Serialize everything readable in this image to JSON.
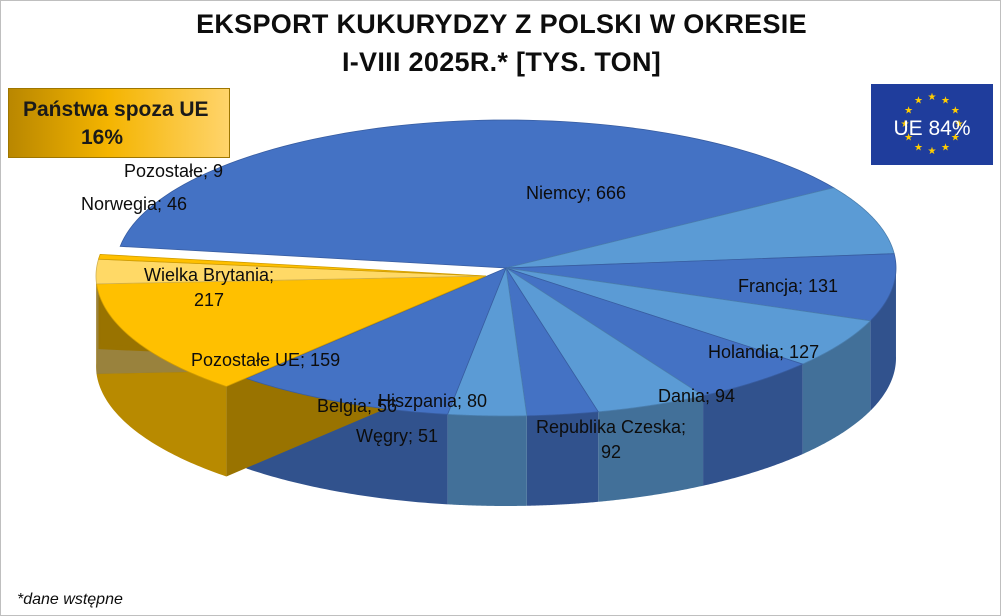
{
  "title_line1": "EKSPORT KUKURYDZY Z POLSKI W OKRESIE",
  "title_line2": "I-VIII 2025R.* [TYS. TON]",
  "non_eu_box": {
    "label": "Państwa spoza UE",
    "share": "16%"
  },
  "eu_box": {
    "label": "UE 84%",
    "flag_color": "#1f3d9c",
    "star_color": "#ffcc00"
  },
  "footnote": "*dane wstępne",
  "labels": {
    "niemcy": "Niemcy; 666",
    "francja": "Francja; 131",
    "holandia": "Holandia; 127",
    "dania": "Dania; 94",
    "czechy_1": "Republika Czeska;",
    "czechy_2": "92",
    "hiszpania": "Hiszpania; 80",
    "wegry": "Węgry; 51",
    "belgia": "Belgia; 56",
    "pozostale_ue": "Pozostałe UE; 159",
    "wb_1": "Wielka Brytania;",
    "wb_2": "217",
    "norwegia": "Norwegia; 46",
    "pozostale": "Pozostałe; 9"
  },
  "chart_data": {
    "type": "pie",
    "title": "EKSPORT KUKURYDZY Z POLSKI W OKRESIE I-VIII 2025R.* [TYS. TON]",
    "unit": "tys. ton",
    "slices": [
      {
        "name": "Niemcy",
        "value": 666,
        "group": "UE",
        "color": "#4472c4"
      },
      {
        "name": "Francja",
        "value": 131,
        "group": "UE",
        "color": "#5b9bd5"
      },
      {
        "name": "Holandia",
        "value": 127,
        "group": "UE",
        "color": "#4472c4"
      },
      {
        "name": "Dania",
        "value": 94,
        "group": "UE",
        "color": "#5b9bd5"
      },
      {
        "name": "Republika Czeska",
        "value": 92,
        "group": "UE",
        "color": "#4472c4"
      },
      {
        "name": "Hiszpania",
        "value": 80,
        "group": "UE",
        "color": "#5b9bd5"
      },
      {
        "name": "Węgry",
        "value": 51,
        "group": "UE",
        "color": "#4472c4"
      },
      {
        "name": "Belgia",
        "value": 56,
        "group": "UE",
        "color": "#5b9bd5"
      },
      {
        "name": "Pozostałe UE",
        "value": 159,
        "group": "UE",
        "color": "#4472c4"
      },
      {
        "name": "Wielka Brytania",
        "value": 217,
        "group": "spoza UE",
        "color": "#ffc000"
      },
      {
        "name": "Norwegia",
        "value": 46,
        "group": "spoza UE",
        "color": "#ffd966"
      },
      {
        "name": "Pozostałe",
        "value": 9,
        "group": "spoza UE",
        "color": "#ffc000"
      }
    ],
    "group_shares": {
      "UE": "84%",
      "spoza UE": "16%"
    },
    "style": "3d-exploded"
  }
}
